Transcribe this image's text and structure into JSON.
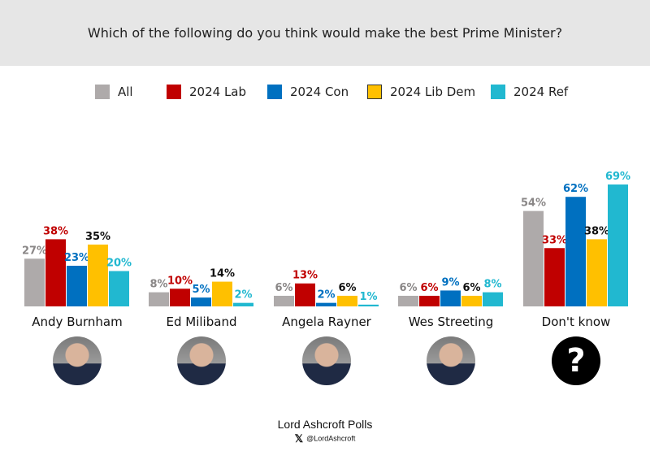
{
  "chart_data": {
    "type": "bar",
    "title": "Which of the following do you think would make the best Prime Minister?",
    "xlabel": "",
    "ylabel": "",
    "ylim": [
      0,
      75
    ],
    "grid": false,
    "legend_position": "top",
    "categories": [
      "Andy Burnham",
      "Ed Miliband",
      "Angela Rayner",
      "Wes Streeting",
      "Don't know"
    ],
    "series": [
      {
        "name": "All",
        "color": "#aeaaaa",
        "label_color": "#8a8787",
        "values": [
          27,
          8,
          6,
          6,
          54
        ]
      },
      {
        "name": "2024 Lab",
        "color": "#c00000",
        "label_color": "#c00000",
        "values": [
          38,
          10,
          13,
          6,
          33
        ]
      },
      {
        "name": "2024 Con",
        "color": "#0070c0",
        "label_color": "#0070c0",
        "values": [
          23,
          5,
          2,
          9,
          62
        ]
      },
      {
        "name": "2024 Lib Dem",
        "color": "#ffc000",
        "label_color": "#111111",
        "values": [
          35,
          14,
          6,
          6,
          38
        ]
      },
      {
        "name": "2024 Ref",
        "color": "#21b8d0",
        "label_color": "#21b8d0",
        "values": [
          20,
          2,
          1,
          8,
          69
        ]
      }
    ],
    "value_suffix": "%"
  },
  "header": {
    "title": "Which of the following do you think would make the best Prime Minister?"
  },
  "legend": {
    "items": [
      "All",
      "2024 Lab",
      "2024 Con",
      "2024 Lib Dem",
      "2024 Ref"
    ]
  },
  "photos": [
    "andy-burnham-photo",
    "ed-miliband-photo",
    "angela-rayner-photo",
    "wes-streeting-photo",
    "question-mark-icon"
  ],
  "footer": {
    "brand": "Lord Ashcroft Polls",
    "x_icon": "𝕏",
    "handle": "@LordAshcroft"
  }
}
